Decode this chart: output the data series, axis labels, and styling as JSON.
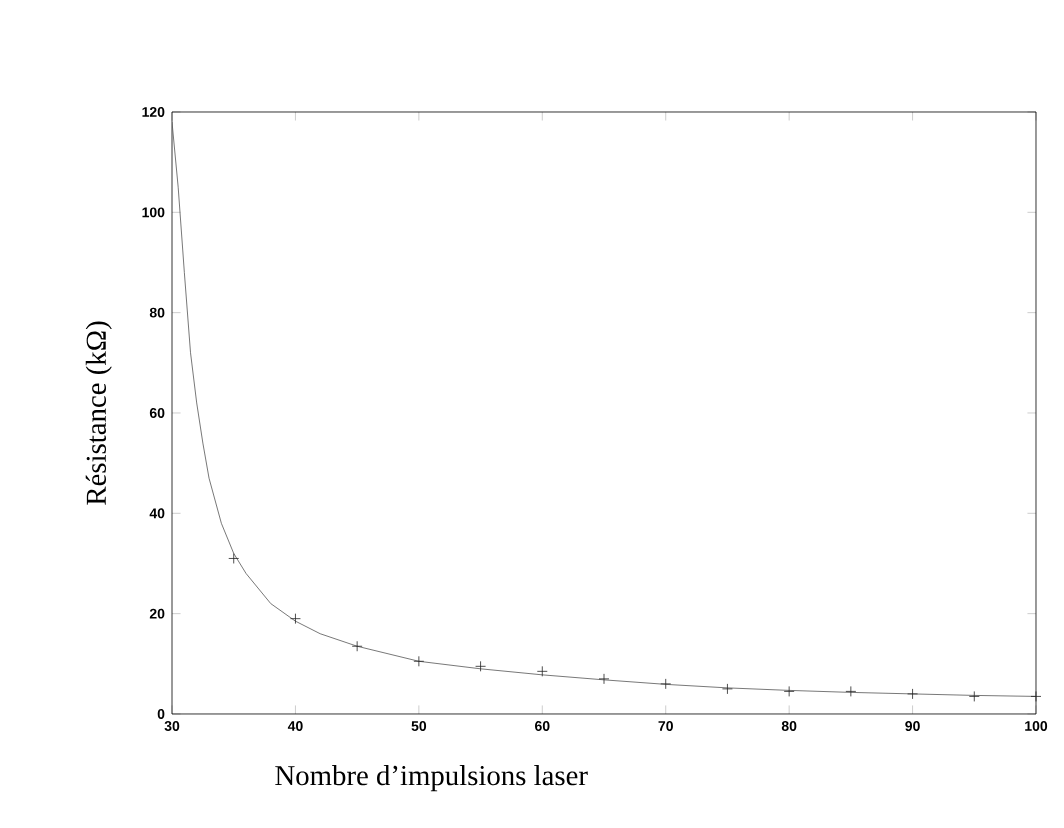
{
  "chart_data": {
    "type": "line",
    "xlabel": "Nombre d’impulsions laser",
    "ylabel": "Résistance (kΩ)",
    "xlim": [
      30,
      100
    ],
    "ylim": [
      0,
      120
    ],
    "xticks": [
      30,
      40,
      50,
      60,
      70,
      80,
      90,
      100
    ],
    "yticks": [
      0,
      20,
      40,
      60,
      80,
      100,
      120
    ],
    "grid": false,
    "series": [
      {
        "type": "scatter",
        "marker": "cross",
        "color": "#222222",
        "x": [
          35,
          40,
          45,
          50,
          55,
          60,
          65,
          70,
          75,
          80,
          85,
          90,
          95,
          100
        ],
        "values": [
          31,
          19,
          13.5,
          10.5,
          9.5,
          8.5,
          7,
          6,
          5,
          4.5,
          4.5,
          4,
          3.5,
          3.5
        ]
      },
      {
        "marker": "none",
        "line_style": "solid",
        "color": "#555555",
        "x": [
          30,
          30.5,
          31,
          31.5,
          32,
          32.5,
          33,
          34,
          35,
          36,
          38,
          40,
          42,
          45,
          50,
          55,
          60,
          65,
          70,
          75,
          80,
          85,
          90,
          95,
          100
        ],
        "values": [
          118,
          105,
          88,
          72,
          62,
          54,
          47,
          38,
          32,
          28,
          22,
          18.5,
          16,
          13.5,
          10.5,
          9,
          7.8,
          6.8,
          5.9,
          5.2,
          4.7,
          4.3,
          4,
          3.7,
          3.5
        ]
      }
    ]
  }
}
